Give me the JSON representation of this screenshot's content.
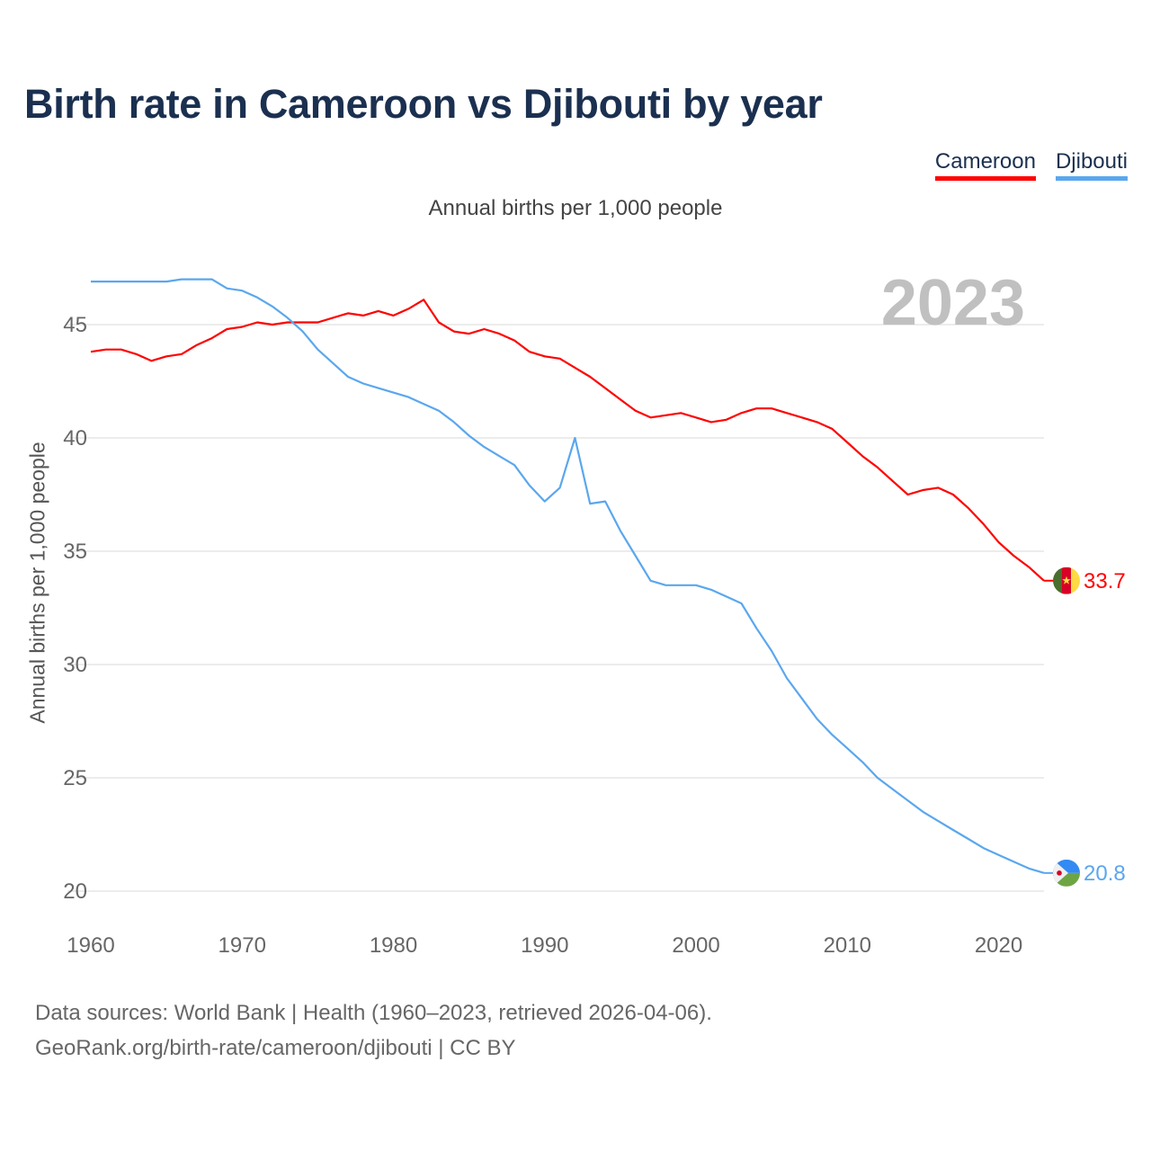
{
  "chart_data": {
    "type": "line",
    "title": "Birth rate in Cameroon vs Djibouti by year",
    "subtitle": "Annual births per 1,000 people",
    "ylabel": "Annual births per 1,000 people",
    "xlabel": "",
    "year_display": "2023",
    "xlim": [
      1960,
      2023
    ],
    "ylim": [
      20,
      48.5
    ],
    "x_ticks": [
      1960,
      1970,
      1980,
      1990,
      2000,
      2010,
      2020
    ],
    "y_ticks": [
      20,
      25,
      30,
      35,
      40,
      45
    ],
    "grid": true,
    "legend_placement": "top-right",
    "x": [
      1960,
      1961,
      1962,
      1963,
      1964,
      1965,
      1966,
      1967,
      1968,
      1969,
      1970,
      1971,
      1972,
      1973,
      1974,
      1975,
      1976,
      1977,
      1978,
      1979,
      1980,
      1981,
      1982,
      1983,
      1984,
      1985,
      1986,
      1987,
      1988,
      1989,
      1990,
      1991,
      1992,
      1993,
      1994,
      1995,
      1996,
      1997,
      1998,
      1999,
      2000,
      2001,
      2002,
      2003,
      2004,
      2005,
      2006,
      2007,
      2008,
      2009,
      2010,
      2011,
      2012,
      2013,
      2014,
      2015,
      2016,
      2017,
      2018,
      2019,
      2020,
      2021,
      2022,
      2023
    ],
    "series": [
      {
        "name": "Cameroon",
        "color": "#ff0000",
        "last_label": "33.7",
        "flag": "cameroon-flag",
        "values": [
          43.8,
          43.9,
          43.9,
          43.7,
          43.4,
          43.6,
          43.7,
          44.1,
          44.4,
          44.8,
          44.9,
          45.1,
          45.0,
          45.1,
          45.1,
          45.1,
          45.3,
          45.5,
          45.4,
          45.6,
          45.4,
          45.7,
          46.1,
          45.1,
          44.7,
          44.6,
          44.8,
          44.6,
          44.3,
          43.8,
          43.6,
          43.5,
          43.1,
          42.7,
          42.2,
          41.7,
          41.2,
          40.9,
          41.0,
          41.1,
          40.9,
          40.7,
          40.8,
          41.1,
          41.3,
          41.3,
          41.1,
          40.9,
          40.7,
          40.4,
          39.8,
          39.2,
          38.7,
          38.1,
          37.5,
          37.7,
          37.8,
          37.5,
          36.9,
          36.2,
          35.4,
          34.8,
          34.3,
          33.7
        ]
      },
      {
        "name": "Djibouti",
        "color": "#5aa7ee",
        "last_label": "20.8",
        "flag": "djibouti-flag",
        "values": [
          46.9,
          46.9,
          46.9,
          46.9,
          46.9,
          46.9,
          47.0,
          47.0,
          47.0,
          46.6,
          46.5,
          46.2,
          45.8,
          45.3,
          44.7,
          43.9,
          43.3,
          42.7,
          42.4,
          42.2,
          42.0,
          41.8,
          41.5,
          41.2,
          40.7,
          40.1,
          39.6,
          39.2,
          38.8,
          37.9,
          37.2,
          37.8,
          40.0,
          37.1,
          37.2,
          35.9,
          34.8,
          33.7,
          33.5,
          33.5,
          33.5,
          33.3,
          33.0,
          32.7,
          31.6,
          30.6,
          29.4,
          28.5,
          27.6,
          26.9,
          26.3,
          25.7,
          25.0,
          24.5,
          24.0,
          23.5,
          23.1,
          22.7,
          22.3,
          21.9,
          21.6,
          21.3,
          21.0,
          20.8
        ]
      }
    ]
  },
  "footer": {
    "line1": "Data sources: World Bank | Health (1960–2023, retrieved 2026-04-06).",
    "line2": "GeoRank.org/birth-rate/cameroon/djibouti | CC BY"
  }
}
